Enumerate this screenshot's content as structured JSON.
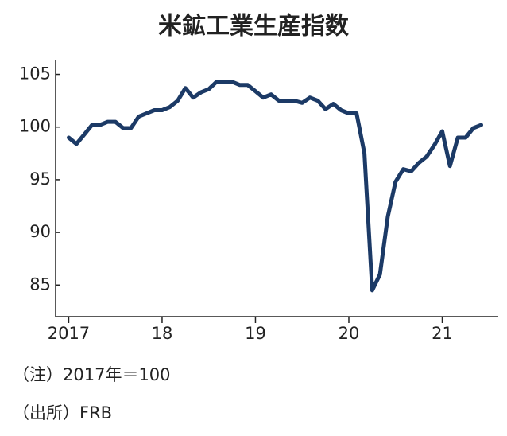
{
  "chart_data": {
    "type": "line",
    "title": "米鉱工業生産指数",
    "notes": [
      "（注）2017年＝100",
      "（出所）FRB"
    ],
    "x": [
      2017,
      2017.083,
      2017.167,
      2017.25,
      2017.333,
      2017.417,
      2017.5,
      2017.583,
      2017.667,
      2017.75,
      2017.833,
      2017.917,
      2018,
      2018.083,
      2018.167,
      2018.25,
      2018.333,
      2018.417,
      2018.5,
      2018.583,
      2018.667,
      2018.75,
      2018.833,
      2018.917,
      2019,
      2019.083,
      2019.167,
      2019.25,
      2019.333,
      2019.417,
      2019.5,
      2019.583,
      2019.667,
      2019.75,
      2019.833,
      2019.917,
      2020,
      2020.083,
      2020.167,
      2020.25,
      2020.333,
      2020.417,
      2020.5,
      2020.583,
      2020.667,
      2020.75,
      2020.833,
      2020.917,
      2021,
      2021.083,
      2021.167,
      2021.25,
      2021.333,
      2021.417
    ],
    "values": [
      99.0,
      98.4,
      99.3,
      100.2,
      100.2,
      100.5,
      100.5,
      99.9,
      99.9,
      101.0,
      101.3,
      101.6,
      101.6,
      101.9,
      102.5,
      103.7,
      102.8,
      103.3,
      103.6,
      104.3,
      104.3,
      104.3,
      104.0,
      104.0,
      103.4,
      102.8,
      103.1,
      102.5,
      102.5,
      102.5,
      102.3,
      102.8,
      102.5,
      101.7,
      102.2,
      101.6,
      101.3,
      101.3,
      97.5,
      84.5,
      86.0,
      91.5,
      94.8,
      96.0,
      95.8,
      96.6,
      97.2,
      98.3,
      99.6,
      96.3,
      99.0,
      99.0,
      99.9,
      100.2
    ],
    "color": "#1c3a66",
    "xlim": [
      2016.86,
      2021.6
    ],
    "xticks": [
      2017,
      {
        "value": 2018,
        "label": "18"
      },
      {
        "value": 2019,
        "label": "19"
      },
      {
        "value": 2020,
        "label": "20"
      },
      {
        "value": 2021,
        "label": "21"
      }
    ],
    "ylim": [
      82,
      106.4
    ],
    "yticks": [
      85,
      90,
      95,
      100,
      105
    ],
    "grid": false
  }
}
